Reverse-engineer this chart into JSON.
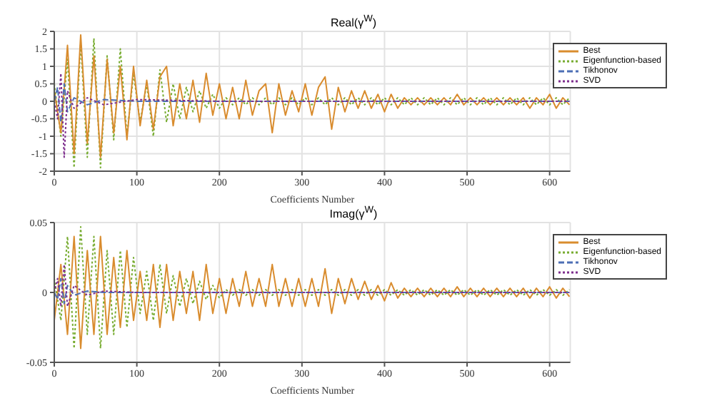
{
  "chart_data": [
    {
      "type": "line",
      "title": "Real(γ$^{W}$)",
      "xlabel": "Coefficients Number",
      "xlim": [
        0,
        625
      ],
      "xticks": [
        0,
        100,
        200,
        300,
        400,
        500,
        600
      ],
      "ylim": [
        -2,
        2
      ],
      "yticks": [
        -2,
        -1.5,
        -1,
        -0.5,
        0,
        0.5,
        1,
        1.5,
        2
      ],
      "grid": true,
      "legend": "top right",
      "marker": "none",
      "x": [
        0,
        8,
        16,
        24,
        32,
        40,
        48,
        56,
        64,
        72,
        80,
        88,
        96,
        104,
        112,
        120,
        128,
        136,
        144,
        152,
        160,
        168,
        176,
        184,
        192,
        200,
        208,
        216,
        224,
        232,
        240,
        248,
        256,
        264,
        272,
        280,
        288,
        296,
        304,
        312,
        320,
        328,
        336,
        344,
        352,
        360,
        368,
        376,
        384,
        392,
        400,
        408,
        416,
        424,
        432,
        440,
        448,
        456,
        464,
        472,
        480,
        488,
        496,
        504,
        512,
        520,
        528,
        536,
        544,
        552,
        560,
        568,
        576,
        584,
        592,
        600,
        608,
        616,
        624
      ],
      "series": [
        {
          "name": "Eigenfunction-based",
          "color": "#77ac30",
          "line_style": "dotted",
          "values": [
            0.5,
            -1.0,
            1.2,
            -1.9,
            1.7,
            -1.6,
            1.8,
            -1.9,
            1.3,
            -1.1,
            1.5,
            -1.0,
            0.8,
            -0.6,
            0.5,
            -1.0,
            0.9,
            -0.6,
            0.5,
            -0.5,
            0.4,
            -0.3,
            0.3,
            -0.2,
            0.2,
            -0.2,
            0.1,
            -0.1,
            0.1,
            -0.1,
            0.1,
            -0.1,
            0.1,
            -0.1,
            0.1,
            -0.1,
            0.1,
            -0.1,
            0.1,
            -0.1,
            0.1,
            -0.1,
            0.1,
            -0.1,
            0.1,
            -0.1,
            0.1,
            -0.1,
            0.1,
            -0.1,
            0.1,
            -0.1,
            0.1,
            -0.1,
            0.1,
            -0.1,
            0.1,
            -0.1,
            0.1,
            -0.1,
            0.1,
            -0.1,
            0.1,
            -0.1,
            0.1,
            -0.1,
            0.1,
            -0.1,
            0.1,
            -0.1,
            0.1,
            -0.1,
            0.1,
            -0.1,
            0.1,
            -0.1,
            0.1,
            -0.1,
            0.1
          ]
        },
        {
          "name": "Best",
          "color": "#d98c2e",
          "line_style": "solid",
          "values": [
            0.3,
            -0.9,
            1.6,
            -1.5,
            1.9,
            -1.2,
            1.3,
            -1.6,
            1.2,
            -0.9,
            1.0,
            -1.1,
            1.0,
            -0.7,
            0.6,
            -0.8,
            0.7,
            1.0,
            -0.7,
            0.5,
            -0.5,
            0.6,
            -0.6,
            0.8,
            -0.4,
            0.5,
            -0.5,
            0.4,
            -0.5,
            0.6,
            -0.4,
            0.3,
            0.5,
            -0.9,
            0.5,
            -0.4,
            0.3,
            -0.3,
            0.5,
            -0.4,
            0.4,
            0.7,
            -0.8,
            0.4,
            -0.3,
            0.3,
            -0.2,
            0.3,
            -0.2,
            0.2,
            -0.3,
            0.2,
            -0.2,
            0.1,
            -0.1,
            0.1,
            -0.1,
            0.1,
            -0.1,
            0.1,
            -0.1,
            0.2,
            -0.1,
            0.1,
            -0.1,
            0.1,
            -0.1,
            0.1,
            -0.1,
            0.1,
            -0.1,
            0.1,
            -0.2,
            0.1,
            -0.1,
            0.2,
            -0.2,
            0.1,
            -0.1
          ]
        },
        {
          "name": "Tikhonov",
          "color": "#4d6fb5",
          "line_style": "dashed",
          "x": [
            0,
            4,
            8,
            12,
            16,
            24,
            40,
            60,
            100,
            200,
            300,
            400,
            500,
            624
          ],
          "values": [
            0,
            0.4,
            -0.6,
            0.5,
            -0.3,
            0.1,
            -0.1,
            0.05,
            0,
            0,
            0,
            0,
            0,
            0
          ]
        },
        {
          "name": "SVD",
          "color": "#7e2f8e",
          "line_style": "dotted",
          "x": [
            0,
            4,
            8,
            12,
            16,
            24,
            40,
            60,
            100,
            200,
            300,
            400,
            500,
            624
          ],
          "values": [
            0,
            -0.5,
            0.8,
            -1.6,
            0.3,
            -0.2,
            0.1,
            -0.1,
            0.05,
            0,
            0,
            0,
            0,
            0
          ]
        }
      ]
    },
    {
      "type": "line",
      "title": "Imag(γ$^{W}$)",
      "xlabel": "Coefficients Number",
      "xlim": [
        0,
        625
      ],
      "xticks": [
        0,
        100,
        200,
        300,
        400,
        500,
        600
      ],
      "ylim": [
        -0.05,
        0.05
      ],
      "yticks": [
        -0.05,
        0,
        0.05
      ],
      "grid": true,
      "legend": "top right",
      "marker": "none",
      "x": [
        0,
        8,
        16,
        24,
        32,
        40,
        48,
        56,
        64,
        72,
        80,
        88,
        96,
        104,
        112,
        120,
        128,
        136,
        144,
        152,
        160,
        168,
        176,
        184,
        192,
        200,
        208,
        216,
        224,
        232,
        240,
        248,
        256,
        264,
        272,
        280,
        288,
        296,
        304,
        312,
        320,
        328,
        336,
        344,
        352,
        360,
        368,
        376,
        384,
        392,
        400,
        408,
        416,
        424,
        432,
        440,
        448,
        456,
        464,
        472,
        480,
        488,
        496,
        504,
        512,
        520,
        528,
        536,
        544,
        552,
        560,
        568,
        576,
        584,
        592,
        600,
        608,
        616,
        624
      ],
      "series": [
        {
          "name": "Eigenfunction-based",
          "color": "#77ac30",
          "line_style": "dotted",
          "values": [
            0.01,
            -0.02,
            0.04,
            -0.04,
            0.047,
            -0.03,
            0.04,
            -0.04,
            0.03,
            -0.03,
            0.03,
            -0.025,
            0.025,
            -0.015,
            0.015,
            -0.02,
            0.02,
            -0.015,
            0.012,
            -0.01,
            0.01,
            -0.008,
            0.008,
            -0.005,
            0.005,
            -0.004,
            0.002,
            -0.002,
            0.002,
            -0.002,
            0.002,
            -0.002,
            0.002,
            -0.002,
            0.002,
            -0.002,
            0.002,
            -0.002,
            0.002,
            -0.002,
            0.002,
            -0.002,
            0.002,
            -0.002,
            0.002,
            -0.002,
            0.002,
            -0.002,
            0.002,
            -0.002,
            0.002,
            -0.002,
            0.002,
            -0.002,
            0.002,
            -0.002,
            0.002,
            -0.002,
            0.002,
            -0.002,
            0.002,
            -0.002,
            0.002,
            -0.002,
            0.002,
            -0.002,
            0.002,
            -0.002,
            0.002,
            -0.002,
            0.002,
            -0.002,
            0.002,
            -0.002,
            0.002,
            -0.002,
            0.002,
            -0.002,
            0.002
          ]
        },
        {
          "name": "Best",
          "color": "#d98c2e",
          "line_style": "solid",
          "values": [
            -0.02,
            0.02,
            -0.03,
            0.04,
            -0.04,
            0.03,
            -0.03,
            0.04,
            -0.03,
            0.025,
            -0.025,
            0.03,
            -0.02,
            0.015,
            -0.02,
            0.02,
            -0.025,
            0.02,
            -0.02,
            0.015,
            -0.015,
            0.015,
            -0.02,
            0.02,
            -0.015,
            0.01,
            -0.015,
            0.01,
            -0.01,
            0.015,
            -0.01,
            0.01,
            -0.01,
            0.02,
            -0.01,
            0.01,
            -0.01,
            0.01,
            -0.01,
            0.01,
            -0.01,
            0.017,
            -0.015,
            0.01,
            -0.008,
            0.01,
            -0.005,
            0.008,
            -0.005,
            0.005,
            -0.006,
            0.007,
            -0.004,
            0.003,
            -0.003,
            0.003,
            -0.003,
            0.003,
            -0.003,
            0.003,
            -0.003,
            0.004,
            -0.003,
            0.003,
            -0.003,
            0.003,
            -0.003,
            0.003,
            -0.003,
            0.003,
            -0.003,
            0.003,
            -0.004,
            0.003,
            -0.003,
            0.004,
            -0.004,
            0.003,
            -0.003
          ]
        },
        {
          "name": "Tikhonov",
          "color": "#4d6fb5",
          "line_style": "dashed",
          "x": [
            0,
            4,
            8,
            12,
            16,
            24,
            40,
            60,
            100,
            200,
            300,
            400,
            500,
            624
          ],
          "values": [
            0,
            -0.005,
            0.01,
            -0.008,
            0.005,
            -0.002,
            0.001,
            0,
            0,
            0,
            0,
            0,
            0,
            0
          ]
        },
        {
          "name": "SVD",
          "color": "#7e2f8e",
          "line_style": "dotted",
          "x": [
            0,
            4,
            8,
            12,
            16,
            24,
            40,
            60,
            100,
            200,
            300,
            400,
            500,
            624
          ],
          "values": [
            0,
            0.01,
            -0.01,
            0.02,
            -0.01,
            0.005,
            -0.002,
            0.001,
            0,
            0,
            0,
            0,
            0,
            0
          ]
        }
      ]
    }
  ]
}
